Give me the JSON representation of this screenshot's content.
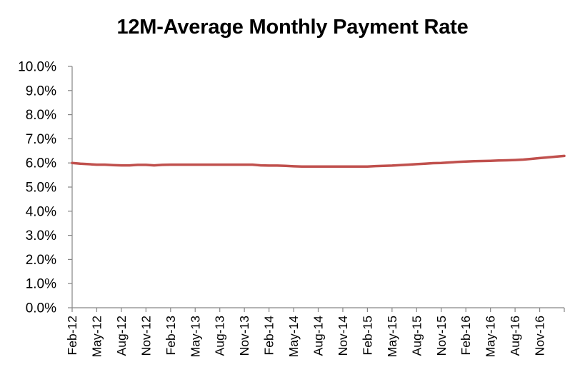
{
  "chart_data": {
    "type": "line",
    "title": "12M-Average Monthly Payment Rate",
    "xlabel": "",
    "ylabel": "",
    "ylim": [
      0,
      0.1
    ],
    "grid": false,
    "legend": "none",
    "y_ticks": [
      "0.0%",
      "1.0%",
      "2.0%",
      "3.0%",
      "4.0%",
      "5.0%",
      "6.0%",
      "7.0%",
      "8.0%",
      "9.0%",
      "10.0%"
    ],
    "x_tick_labels": [
      "Feb-12",
      "May-12",
      "Aug-12",
      "Nov-12",
      "Feb-13",
      "May-13",
      "Aug-13",
      "Nov-13",
      "Feb-14",
      "May-14",
      "Aug-14",
      "Nov-14",
      "Feb-15",
      "May-15",
      "Aug-15",
      "Nov-15",
      "Feb-16",
      "May-16",
      "Aug-16",
      "Nov-16"
    ],
    "x": [
      "Feb-12",
      "Mar-12",
      "Apr-12",
      "May-12",
      "Jun-12",
      "Jul-12",
      "Aug-12",
      "Sep-12",
      "Oct-12",
      "Nov-12",
      "Dec-12",
      "Jan-13",
      "Feb-13",
      "Mar-13",
      "Apr-13",
      "May-13",
      "Jun-13",
      "Jul-13",
      "Aug-13",
      "Sep-13",
      "Oct-13",
      "Nov-13",
      "Dec-13",
      "Jan-14",
      "Feb-14",
      "Mar-14",
      "Apr-14",
      "May-14",
      "Jun-14",
      "Jul-14",
      "Aug-14",
      "Sep-14",
      "Oct-14",
      "Nov-14",
      "Dec-14",
      "Jan-15",
      "Feb-15",
      "Mar-15",
      "Apr-15",
      "May-15",
      "Jun-15",
      "Jul-15",
      "Aug-15",
      "Sep-15",
      "Oct-15",
      "Nov-15",
      "Dec-15",
      "Jan-16",
      "Feb-16",
      "Mar-16",
      "Apr-16",
      "May-16",
      "Jun-16",
      "Jul-16",
      "Aug-16",
      "Sep-16",
      "Oct-16",
      "Nov-16",
      "Dec-16",
      "Jan-17",
      "Feb-17"
    ],
    "series": [
      {
        "color": "#c0504d",
        "values": [
          0.06,
          0.0597,
          0.0595,
          0.0593,
          0.0593,
          0.0591,
          0.059,
          0.059,
          0.0592,
          0.0592,
          0.059,
          0.0592,
          0.0593,
          0.0593,
          0.0593,
          0.0593,
          0.0593,
          0.0593,
          0.0593,
          0.0593,
          0.0593,
          0.0593,
          0.0593,
          0.059,
          0.0589,
          0.0589,
          0.0588,
          0.0586,
          0.0585,
          0.0585,
          0.0585,
          0.0585,
          0.0585,
          0.0585,
          0.0585,
          0.0585,
          0.0585,
          0.0587,
          0.0588,
          0.0589,
          0.0591,
          0.0593,
          0.0595,
          0.0597,
          0.0599,
          0.06,
          0.0602,
          0.0604,
          0.0606,
          0.0607,
          0.0608,
          0.0609,
          0.061,
          0.0611,
          0.0612,
          0.0614,
          0.0617,
          0.062,
          0.0623,
          0.0626,
          0.0629
        ]
      }
    ]
  }
}
